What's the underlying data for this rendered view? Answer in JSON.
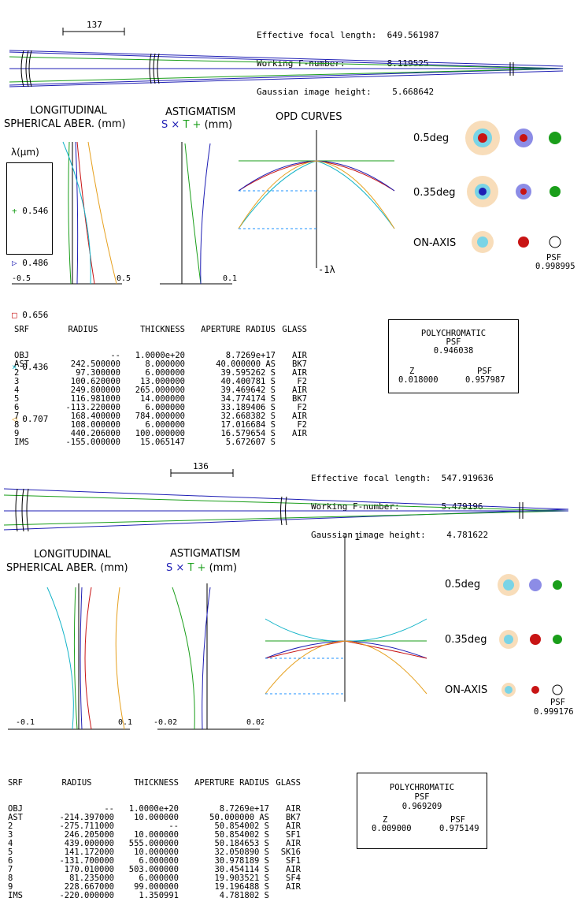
{
  "design1": {
    "header": {
      "efl_label": "Effective focal length:",
      "efl_value": "649.561987",
      "fnum_label": "Working F-number:",
      "fnum_value": "8.119525",
      "img_label": "Gaussian image height:",
      "img_value": "5.668642"
    },
    "scale_label": "137",
    "sa_title_1": "LONGITUDINAL",
    "sa_title_2": "SPHERICAL ABER. (mm)",
    "ast_title_1": "ASTIGMATISM",
    "ast_title_2_s": "S",
    "ast_title_2_x": "×",
    "ast_title_2_t": "T",
    "ast_title_2_plus": "+",
    "ast_title_2_unit": "(mm)",
    "opd_title": "OPD CURVES",
    "lambda_label": "λ(μm)",
    "legend": [
      {
        "symbol": "+",
        "label": "0.546",
        "color": "#1a9e1a"
      },
      {
        "symbol": "▷",
        "label": "0.486",
        "color": "#1e1eb4"
      },
      {
        "symbol": "□",
        "label": "0.656",
        "color": "#c81414"
      },
      {
        "symbol": "×",
        "label": "0.436",
        "color": "#14b4c8"
      },
      {
        "symbol": "◁",
        "label": "0.707",
        "color": "#e6a01e"
      }
    ],
    "sa_axis_left": "-0.5",
    "sa_axis_right": "0.5",
    "ast_axis_right": "0.1",
    "opd_scale": "-1λ",
    "spot_labels": [
      "0.5deg",
      "0.35deg",
      "ON-AXIS"
    ],
    "psf_label": "PSF",
    "psf_value": "0.998995",
    "table_headers": [
      "SRF",
      "RADIUS",
      "THICKNESS",
      "APERTURE RADIUS",
      "GLASS"
    ],
    "table_rows": [
      [
        "OBJ",
        "--",
        "1.0000e+20",
        "8.7269e+17",
        "AIR"
      ],
      [
        "AST",
        "242.500000",
        "8.000000",
        "40.000000 AS",
        "BK7"
      ],
      [
        "2",
        "97.300000",
        "6.000000",
        "39.595262 S",
        "AIR"
      ],
      [
        "3",
        "100.620000",
        "13.000000",
        "40.400781 S",
        "F2"
      ],
      [
        "4",
        "249.800000",
        "265.000000",
        "39.469642 S",
        "AIR"
      ],
      [
        "5",
        "116.981000",
        "14.000000",
        "34.774174 S",
        "BK7"
      ],
      [
        "6",
        "-113.220000",
        "6.000000",
        "33.189406 S",
        "F2"
      ],
      [
        "7",
        "168.400000",
        "784.000000",
        "32.668382 S",
        "AIR"
      ],
      [
        "8",
        "108.000000",
        "6.000000",
        "17.016684 S",
        "F2"
      ],
      [
        "9",
        "440.206000",
        "100.000000",
        "16.579654 S",
        "AIR"
      ],
      [
        "IMS",
        "-155.000000",
        "15.065147",
        "5.672607 S",
        ""
      ]
    ],
    "poly": {
      "title": "POLYCHROMATIC",
      "psf_label": "PSF",
      "psf_value": "0.946038",
      "z_label": "Z",
      "z_value": "0.018000",
      "psf2_label": "PSF",
      "psf2_value": "0.957987"
    }
  },
  "design2": {
    "header": {
      "efl_label": "Effective focal length:",
      "efl_value": "547.919636",
      "fnum_label": "Working F-number:",
      "fnum_value": "5.479196",
      "img_label": "Gaussian image height:",
      "img_value": "4.781622"
    },
    "scale_label": "136",
    "sa_title_1": "LONGITUDINAL",
    "sa_title_2": "SPHERICAL ABER. (mm)",
    "ast_title_1": "ASTIGMATISM",
    "ast_title_2_s": "S",
    "ast_title_2_x": "×",
    "ast_title_2_t": "T",
    "ast_title_2_plus": "+",
    "ast_title_2_unit": "(mm)",
    "sa_axis_left": "-0.1",
    "sa_axis_right": "0.1",
    "ast_axis_left": "-0.02",
    "ast_axis_right": "0.02",
    "opd_scale": "1",
    "spot_labels": [
      "0.5deg",
      "0.35deg",
      "ON-AXIS"
    ],
    "psf_label": "PSF",
    "psf_value": "0.999176",
    "table_headers": [
      "SRF",
      "RADIUS",
      "THICKNESS",
      "APERTURE RADIUS",
      "GLASS"
    ],
    "table_rows": [
      [
        "OBJ",
        "--",
        "1.0000e+20",
        "8.7269e+17",
        "AIR"
      ],
      [
        "AST",
        "-214.397000",
        "10.000000",
        "50.000000 AS",
        "BK7"
      ],
      [
        "2",
        "-275.711000",
        "--",
        "50.854002 S",
        "AIR"
      ],
      [
        "3",
        "246.205000",
        "10.000000",
        "50.854002 S",
        "SF1"
      ],
      [
        "4",
        "439.000000",
        "555.000000",
        "50.184653 S",
        "AIR"
      ],
      [
        "5",
        "141.172000",
        "10.000000",
        "32.050890 S",
        "SK16"
      ],
      [
        "6",
        "-131.700000",
        "6.000000",
        "30.978189 S",
        "SF1"
      ],
      [
        "7",
        "170.010000",
        "503.000000",
        "30.454114 S",
        "AIR"
      ],
      [
        "8",
        "81.235000",
        "6.000000",
        "19.903521 S",
        "SF4"
      ],
      [
        "9",
        "228.667000",
        "99.000000",
        "19.196488 S",
        "AIR"
      ],
      [
        "IMS",
        "-220.000000",
        "1.350991",
        "4.781802 S",
        ""
      ]
    ],
    "poly": {
      "title": "POLYCHROMATIC",
      "psf_label": "PSF",
      "psf_value": "0.969209",
      "z_label": "Z",
      "z_value": "0.009000",
      "psf2_label": "PSF",
      "psf2_value": "0.975149"
    }
  }
}
